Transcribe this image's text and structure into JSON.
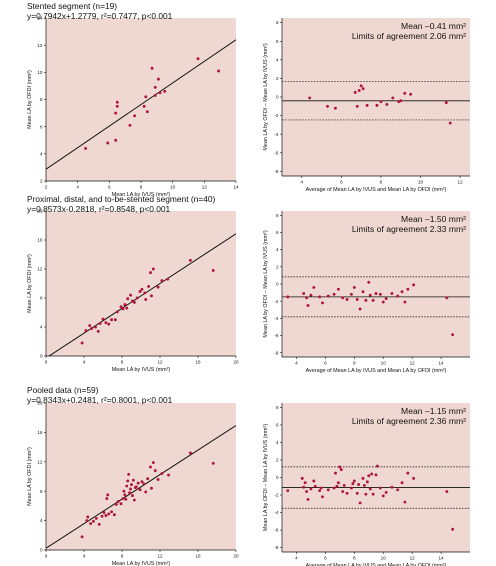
{
  "chart_data": [
    {
      "type": "scatter",
      "block_title": "Stented segment (n=19)",
      "equation": "y=0.7942x+1.2779, r²=0.7477, p<0.001",
      "xlabel": "Mean LA by IVUS (mm²)",
      "ylabel": "Mean LA by OFDI (mm²)",
      "xlim": [
        2,
        14
      ],
      "ylim": [
        2,
        14
      ],
      "xticks": [
        2,
        4,
        6,
        8,
        10,
        12,
        14
      ],
      "yticks": [
        2,
        4,
        6,
        8,
        10,
        12,
        14
      ],
      "fit_line": {
        "slope": 0.7942,
        "intercept": 1.2779
      },
      "points": [
        {
          "x": 4.5,
          "y": 4.4
        },
        {
          "x": 5.9,
          "y": 4.8
        },
        {
          "x": 6.4,
          "y": 5.0
        },
        {
          "x": 6.4,
          "y": 7.0
        },
        {
          "x": 6.5,
          "y": 7.5
        },
        {
          "x": 6.5,
          "y": 7.8
        },
        {
          "x": 7.3,
          "y": 6.1
        },
        {
          "x": 7.6,
          "y": 6.8
        },
        {
          "x": 8.2,
          "y": 7.5
        },
        {
          "x": 8.3,
          "y": 8.2
        },
        {
          "x": 8.4,
          "y": 7.1
        },
        {
          "x": 8.7,
          "y": 10.3
        },
        {
          "x": 8.9,
          "y": 8.9
        },
        {
          "x": 8.9,
          "y": 8.3
        },
        {
          "x": 9.1,
          "y": 9.5
        },
        {
          "x": 9.2,
          "y": 8.5
        },
        {
          "x": 9.5,
          "y": 8.6
        },
        {
          "x": 11.6,
          "y": 11.0
        },
        {
          "x": 12.9,
          "y": 10.1
        }
      ]
    },
    {
      "type": "scatter",
      "chart_kind": "bland-altman",
      "xlabel": "Average of Mean LA by IVUS and Mean LA by OFDI (mm²)",
      "ylabel": "Mean LA by OFDI – Mean LA by IVUS (mm²)",
      "xlim": [
        3,
        12.5
      ],
      "ylim": [
        -8.5,
        8.5
      ],
      "xticks": [
        4,
        6,
        8,
        10,
        12
      ],
      "yticks": [
        -8,
        -6,
        -4,
        -2,
        0,
        2,
        4,
        6,
        8
      ],
      "mean_label": "Mean –0.41 mm²",
      "loa_label": "Limits of agreement 2.06 mm²",
      "mean": -0.41,
      "loa_upper": 1.65,
      "loa_lower": -2.47,
      "points": [
        {
          "x": 4.4,
          "y": -0.1
        },
        {
          "x": 5.3,
          "y": -1.0
        },
        {
          "x": 5.7,
          "y": -1.2
        },
        {
          "x": 6.7,
          "y": 0.5
        },
        {
          "x": 6.8,
          "y": -1.0
        },
        {
          "x": 6.9,
          "y": 0.7
        },
        {
          "x": 7.0,
          "y": 1.2
        },
        {
          "x": 7.1,
          "y": 0.9
        },
        {
          "x": 7.3,
          "y": -0.9
        },
        {
          "x": 7.8,
          "y": -0.9
        },
        {
          "x": 8.0,
          "y": -0.5
        },
        {
          "x": 8.3,
          "y": -0.8
        },
        {
          "x": 8.6,
          "y": -0.1
        },
        {
          "x": 8.9,
          "y": -0.5
        },
        {
          "x": 9.0,
          "y": -0.4
        },
        {
          "x": 9.2,
          "y": 0.4
        },
        {
          "x": 9.5,
          "y": 0.3
        },
        {
          "x": 11.3,
          "y": -0.6
        },
        {
          "x": 11.5,
          "y": -2.8
        }
      ]
    },
    {
      "type": "scatter",
      "block_title": "Proximal, distal, and to-be-stented segment (n=40)",
      "equation": "y=0.8573x-0.2818, r²=0.8548, p<0.001",
      "xlabel": "Mean LA by IVUS (mm²)",
      "ylabel": "Mean LA by OFDI (mm²)",
      "xlim": [
        0,
        20
      ],
      "ylim": [
        0,
        20
      ],
      "xticks": [
        0,
        4,
        8,
        12,
        16,
        20
      ],
      "yticks": [
        0,
        4,
        8,
        12,
        16,
        20
      ],
      "fit_line": {
        "slope": 0.8573,
        "intercept": -0.2818
      },
      "points": [
        {
          "x": 3.8,
          "y": 1.8
        },
        {
          "x": 4.2,
          "y": 3.5
        },
        {
          "x": 4.6,
          "y": 4.2
        },
        {
          "x": 4.8,
          "y": 3.8
        },
        {
          "x": 5.2,
          "y": 4.0
        },
        {
          "x": 5.5,
          "y": 3.4
        },
        {
          "x": 5.7,
          "y": 4.5
        },
        {
          "x": 6.0,
          "y": 5.1
        },
        {
          "x": 6.3,
          "y": 4.6
        },
        {
          "x": 6.6,
          "y": 4.4
        },
        {
          "x": 6.9,
          "y": 5.0
        },
        {
          "x": 7.3,
          "y": 5.0
        },
        {
          "x": 7.5,
          "y": 6.1
        },
        {
          "x": 7.9,
          "y": 6.8
        },
        {
          "x": 8.1,
          "y": 6.5
        },
        {
          "x": 8.3,
          "y": 7.1
        },
        {
          "x": 8.5,
          "y": 6.6
        },
        {
          "x": 8.6,
          "y": 7.9
        },
        {
          "x": 8.9,
          "y": 8.4
        },
        {
          "x": 9.1,
          "y": 7.6
        },
        {
          "x": 9.3,
          "y": 7.4
        },
        {
          "x": 9.6,
          "y": 8.0
        },
        {
          "x": 9.9,
          "y": 8.9
        },
        {
          "x": 10.1,
          "y": 9.2
        },
        {
          "x": 10.4,
          "y": 8.7
        },
        {
          "x": 10.5,
          "y": 7.8
        },
        {
          "x": 10.8,
          "y": 9.6
        },
        {
          "x": 11.0,
          "y": 11.5
        },
        {
          "x": 11.1,
          "y": 8.3
        },
        {
          "x": 11.3,
          "y": 12.0
        },
        {
          "x": 11.8,
          "y": 9.5
        },
        {
          "x": 12.2,
          "y": 10.4
        },
        {
          "x": 12.8,
          "y": 10.6
        },
        {
          "x": 15.2,
          "y": 13.2
        },
        {
          "x": 17.6,
          "y": 11.8
        }
      ]
    },
    {
      "type": "scatter",
      "chart_kind": "bland-altman",
      "xlabel": "Average of Mean LA by IVUS and Mean LA by OFDI (mm²)",
      "ylabel": "Mean LA by OFDI – Mean LA by IVUS (mm²)",
      "xlim": [
        3,
        16
      ],
      "ylim": [
        -8.5,
        8.5
      ],
      "xticks": [
        4,
        6,
        8,
        10,
        12,
        14
      ],
      "yticks": [
        -8,
        -6,
        -4,
        -2,
        0,
        2,
        4,
        6,
        8
      ],
      "mean_label": "Mean –1.50 mm²",
      "loa_label": "Limits of agreement 2.33 mm²",
      "mean": -1.5,
      "loa_upper": 0.83,
      "loa_lower": -3.83,
      "points": [
        {
          "x": 3.4,
          "y": -1.5
        },
        {
          "x": 4.5,
          "y": -1.1
        },
        {
          "x": 4.7,
          "y": -1.6
        },
        {
          "x": 4.8,
          "y": -2.5
        },
        {
          "x": 5.0,
          "y": -1.3
        },
        {
          "x": 5.2,
          "y": -0.4
        },
        {
          "x": 5.6,
          "y": -1.5
        },
        {
          "x": 5.8,
          "y": -2.2
        },
        {
          "x": 6.2,
          "y": -1.4
        },
        {
          "x": 6.6,
          "y": -1.2
        },
        {
          "x": 6.9,
          "y": -0.6
        },
        {
          "x": 7.2,
          "y": -1.6
        },
        {
          "x": 7.5,
          "y": -1.8
        },
        {
          "x": 7.8,
          "y": -1.2
        },
        {
          "x": 8.0,
          "y": -0.4
        },
        {
          "x": 8.2,
          "y": -1.8
        },
        {
          "x": 8.4,
          "y": -2.9
        },
        {
          "x": 8.6,
          "y": -0.9
        },
        {
          "x": 8.8,
          "y": -1.9
        },
        {
          "x": 9.0,
          "y": 0.2
        },
        {
          "x": 9.1,
          "y": -1.3
        },
        {
          "x": 9.3,
          "y": -1.9
        },
        {
          "x": 9.5,
          "y": -1.1
        },
        {
          "x": 9.8,
          "y": -1.2
        },
        {
          "x": 10.0,
          "y": -2.1
        },
        {
          "x": 10.2,
          "y": -1.7
        },
        {
          "x": 10.6,
          "y": -1.1
        },
        {
          "x": 11.0,
          "y": -1.4
        },
        {
          "x": 11.3,
          "y": -0.9
        },
        {
          "x": 11.5,
          "y": -2.1
        },
        {
          "x": 11.7,
          "y": -0.6
        },
        {
          "x": 12.1,
          "y": -0.1
        },
        {
          "x": 14.4,
          "y": -1.6
        },
        {
          "x": 14.8,
          "y": -5.9
        }
      ]
    },
    {
      "type": "scatter",
      "block_title": "Pooled data (n=59)",
      "equation": "y=0.8343x+0.2481, r²=0.8001, p<0.001",
      "xlabel": "Mean LA by IVUS (mm²)",
      "ylabel": "Mean LA by OFDI (mm²)",
      "xlim": [
        0,
        20
      ],
      "ylim": [
        0,
        20
      ],
      "xticks": [
        0,
        4,
        8,
        12,
        16,
        20
      ],
      "yticks": [
        0,
        4,
        8,
        12,
        16,
        20
      ],
      "fit_line": {
        "slope": 0.8343,
        "intercept": 0.2481
      },
      "points": [
        {
          "x": 3.8,
          "y": 1.8
        },
        {
          "x": 4.3,
          "y": 4.0
        },
        {
          "x": 4.4,
          "y": 4.5
        },
        {
          "x": 4.7,
          "y": 3.6
        },
        {
          "x": 5.0,
          "y": 3.9
        },
        {
          "x": 5.3,
          "y": 4.3
        },
        {
          "x": 5.6,
          "y": 3.5
        },
        {
          "x": 5.9,
          "y": 4.6
        },
        {
          "x": 6.1,
          "y": 5.1
        },
        {
          "x": 6.3,
          "y": 4.7
        },
        {
          "x": 6.4,
          "y": 7.0
        },
        {
          "x": 6.5,
          "y": 7.5
        },
        {
          "x": 6.6,
          "y": 4.9
        },
        {
          "x": 6.9,
          "y": 5.2
        },
        {
          "x": 7.2,
          "y": 4.8
        },
        {
          "x": 7.4,
          "y": 6.2
        },
        {
          "x": 7.6,
          "y": 6.6
        },
        {
          "x": 7.9,
          "y": 6.3
        },
        {
          "x": 8.1,
          "y": 7.0
        },
        {
          "x": 8.2,
          "y": 8.0
        },
        {
          "x": 8.3,
          "y": 7.5
        },
        {
          "x": 8.4,
          "y": 6.9
        },
        {
          "x": 8.5,
          "y": 8.7
        },
        {
          "x": 8.6,
          "y": 9.4
        },
        {
          "x": 8.7,
          "y": 10.3
        },
        {
          "x": 8.8,
          "y": 7.8
        },
        {
          "x": 8.9,
          "y": 8.3
        },
        {
          "x": 9.0,
          "y": 8.9
        },
        {
          "x": 9.1,
          "y": 7.4
        },
        {
          "x": 9.2,
          "y": 9.5
        },
        {
          "x": 9.3,
          "y": 6.8
        },
        {
          "x": 9.4,
          "y": 8.5
        },
        {
          "x": 9.5,
          "y": 8.6
        },
        {
          "x": 9.7,
          "y": 9.1
        },
        {
          "x": 9.9,
          "y": 8.2
        },
        {
          "x": 10.1,
          "y": 9.3
        },
        {
          "x": 10.3,
          "y": 9.0
        },
        {
          "x": 10.5,
          "y": 7.9
        },
        {
          "x": 10.7,
          "y": 9.7
        },
        {
          "x": 11.0,
          "y": 11.3
        },
        {
          "x": 11.1,
          "y": 8.4
        },
        {
          "x": 11.3,
          "y": 11.9
        },
        {
          "x": 11.5,
          "y": 10.8
        },
        {
          "x": 11.8,
          "y": 9.6
        },
        {
          "x": 12.2,
          "y": 10.4
        },
        {
          "x": 12.9,
          "y": 10.2
        },
        {
          "x": 15.2,
          "y": 13.2
        },
        {
          "x": 17.6,
          "y": 11.8
        }
      ]
    },
    {
      "type": "scatter",
      "chart_kind": "bland-altman",
      "xlabel": "Average of Mean LA by IVUS and Mean LA by OFDI (mm²)",
      "ylabel": "Mean LA by OFDI – Mean LA by IVUS (mm²)",
      "xlim": [
        3,
        16
      ],
      "ylim": [
        -8.5,
        8.5
      ],
      "xticks": [
        4,
        6,
        8,
        10,
        12,
        14
      ],
      "yticks": [
        -8,
        -6,
        -4,
        -2,
        0,
        2,
        4,
        6,
        8
      ],
      "mean_label": "Mean –1.15 mm²",
      "loa_label": "Limits of agreement 2.36 mm²",
      "mean": -1.15,
      "loa_upper": 1.21,
      "loa_lower": -3.51,
      "points": [
        {
          "x": 3.4,
          "y": -1.5
        },
        {
          "x": 4.4,
          "y": -0.1
        },
        {
          "x": 4.5,
          "y": -1.1
        },
        {
          "x": 4.6,
          "y": -0.6
        },
        {
          "x": 4.7,
          "y": -1.6
        },
        {
          "x": 4.8,
          "y": -2.5
        },
        {
          "x": 5.0,
          "y": -1.3
        },
        {
          "x": 5.2,
          "y": -0.4
        },
        {
          "x": 5.3,
          "y": -1.0
        },
        {
          "x": 5.6,
          "y": -1.5
        },
        {
          "x": 5.7,
          "y": -1.2
        },
        {
          "x": 5.8,
          "y": -2.2
        },
        {
          "x": 6.2,
          "y": -1.4
        },
        {
          "x": 6.6,
          "y": -1.2
        },
        {
          "x": 6.7,
          "y": 0.5
        },
        {
          "x": 6.8,
          "y": -1.0
        },
        {
          "x": 6.9,
          "y": -0.6
        },
        {
          "x": 7.0,
          "y": 1.2
        },
        {
          "x": 7.1,
          "y": 0.9
        },
        {
          "x": 7.2,
          "y": -1.6
        },
        {
          "x": 7.3,
          "y": -0.9
        },
        {
          "x": 7.5,
          "y": -1.8
        },
        {
          "x": 7.8,
          "y": -1.2
        },
        {
          "x": 7.9,
          "y": -0.7
        },
        {
          "x": 8.0,
          "y": -0.4
        },
        {
          "x": 8.2,
          "y": -1.8
        },
        {
          "x": 8.3,
          "y": -0.8
        },
        {
          "x": 8.4,
          "y": -2.9
        },
        {
          "x": 8.6,
          "y": -0.1
        },
        {
          "x": 8.7,
          "y": -0.9
        },
        {
          "x": 8.8,
          "y": -1.9
        },
        {
          "x": 8.9,
          "y": -0.5
        },
        {
          "x": 9.0,
          "y": 0.2
        },
        {
          "x": 9.1,
          "y": -1.3
        },
        {
          "x": 9.2,
          "y": 0.4
        },
        {
          "x": 9.3,
          "y": -1.9
        },
        {
          "x": 9.5,
          "y": 0.3
        },
        {
          "x": 9.6,
          "y": 1.3
        },
        {
          "x": 9.8,
          "y": -1.2
        },
        {
          "x": 10.0,
          "y": -2.1
        },
        {
          "x": 10.2,
          "y": -1.7
        },
        {
          "x": 10.6,
          "y": -1.1
        },
        {
          "x": 11.0,
          "y": -1.4
        },
        {
          "x": 11.3,
          "y": -0.6
        },
        {
          "x": 11.5,
          "y": -2.8
        },
        {
          "x": 11.7,
          "y": 0.5
        },
        {
          "x": 12.1,
          "y": -0.1
        },
        {
          "x": 14.4,
          "y": -1.6
        },
        {
          "x": 14.8,
          "y": -5.9
        }
      ]
    }
  ]
}
